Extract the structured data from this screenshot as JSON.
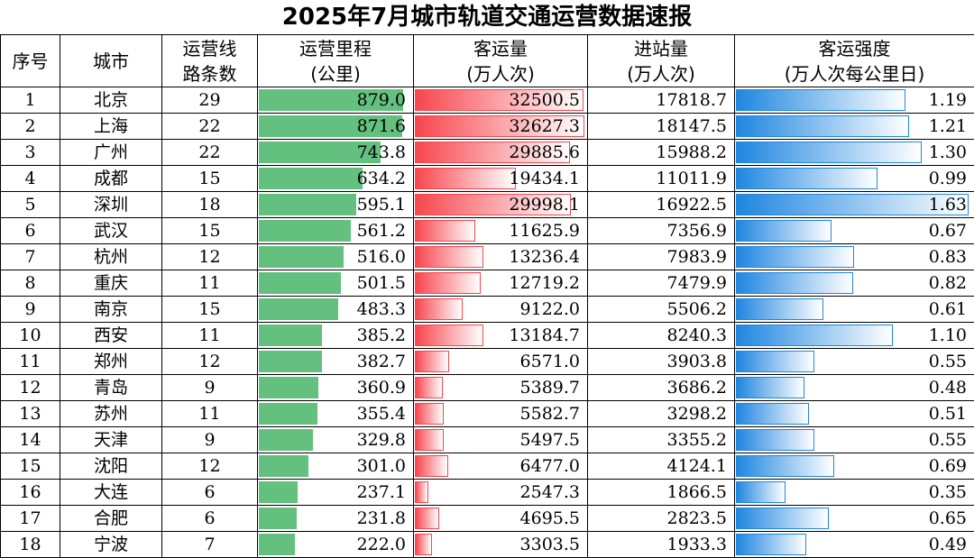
{
  "title": "2025年7月城市轨道交通运营数据速报",
  "headers": {
    "idx": [
      "序号"
    ],
    "city": [
      "城市"
    ],
    "lines": [
      "运营线",
      "路条数"
    ],
    "mileage": [
      "运营里程",
      "(公里)"
    ],
    "passengers": [
      "客运量",
      "(万人次)"
    ],
    "entries": [
      "进站量",
      "(万人次)"
    ],
    "intensity": [
      "客运强度",
      "(万人次每公里日)"
    ]
  },
  "colors": {
    "mileage_bar": "#63c07f",
    "passenger_bar": "#f7464e",
    "intensity_bar": "#1f86e0"
  },
  "rows": [
    {
      "idx": "1",
      "city": "北京",
      "lines": "29",
      "mileage": "879.0",
      "passengers": "32500.5",
      "entries": "17818.7",
      "intensity": "1.19"
    },
    {
      "idx": "2",
      "city": "上海",
      "lines": "22",
      "mileage": "871.6",
      "passengers": "32627.3",
      "entries": "18147.5",
      "intensity": "1.21"
    },
    {
      "idx": "3",
      "city": "广州",
      "lines": "22",
      "mileage": "743.8",
      "passengers": "29885.6",
      "entries": "15988.2",
      "intensity": "1.30"
    },
    {
      "idx": "4",
      "city": "成都",
      "lines": "15",
      "mileage": "634.2",
      "passengers": "19434.1",
      "entries": "11011.9",
      "intensity": "0.99"
    },
    {
      "idx": "5",
      "city": "深圳",
      "lines": "18",
      "mileage": "595.1",
      "passengers": "29998.1",
      "entries": "16922.5",
      "intensity": "1.63"
    },
    {
      "idx": "6",
      "city": "武汉",
      "lines": "15",
      "mileage": "561.2",
      "passengers": "11625.9",
      "entries": "7356.9",
      "intensity": "0.67"
    },
    {
      "idx": "7",
      "city": "杭州",
      "lines": "12",
      "mileage": "516.0",
      "passengers": "13236.4",
      "entries": "7983.9",
      "intensity": "0.83"
    },
    {
      "idx": "8",
      "city": "重庆",
      "lines": "11",
      "mileage": "501.5",
      "passengers": "12719.2",
      "entries": "7479.9",
      "intensity": "0.82"
    },
    {
      "idx": "9",
      "city": "南京",
      "lines": "15",
      "mileage": "483.3",
      "passengers": "9122.0",
      "entries": "5506.2",
      "intensity": "0.61"
    },
    {
      "idx": "10",
      "city": "西安",
      "lines": "11",
      "mileage": "385.2",
      "passengers": "13184.7",
      "entries": "8240.3",
      "intensity": "1.10"
    },
    {
      "idx": "11",
      "city": "郑州",
      "lines": "12",
      "mileage": "382.7",
      "passengers": "6571.0",
      "entries": "3903.8",
      "intensity": "0.55"
    },
    {
      "idx": "12",
      "city": "青岛",
      "lines": "9",
      "mileage": "360.9",
      "passengers": "5389.7",
      "entries": "3686.2",
      "intensity": "0.48"
    },
    {
      "idx": "13",
      "city": "苏州",
      "lines": "11",
      "mileage": "355.4",
      "passengers": "5582.7",
      "entries": "3298.2",
      "intensity": "0.51"
    },
    {
      "idx": "14",
      "city": "天津",
      "lines": "9",
      "mileage": "329.8",
      "passengers": "5497.5",
      "entries": "3355.2",
      "intensity": "0.55"
    },
    {
      "idx": "15",
      "city": "沈阳",
      "lines": "12",
      "mileage": "301.0",
      "passengers": "6477.0",
      "entries": "4124.1",
      "intensity": "0.69"
    },
    {
      "idx": "16",
      "city": "大连",
      "lines": "6",
      "mileage": "237.1",
      "passengers": "2547.3",
      "entries": "1866.5",
      "intensity": "0.35"
    },
    {
      "idx": "17",
      "city": "合肥",
      "lines": "6",
      "mileage": "231.8",
      "passengers": "4695.5",
      "entries": "2823.5",
      "intensity": "0.65"
    },
    {
      "idx": "18",
      "city": "宁波",
      "lines": "7",
      "mileage": "222.0",
      "passengers": "3303.5",
      "entries": "1933.3",
      "intensity": "0.49"
    }
  ]
}
